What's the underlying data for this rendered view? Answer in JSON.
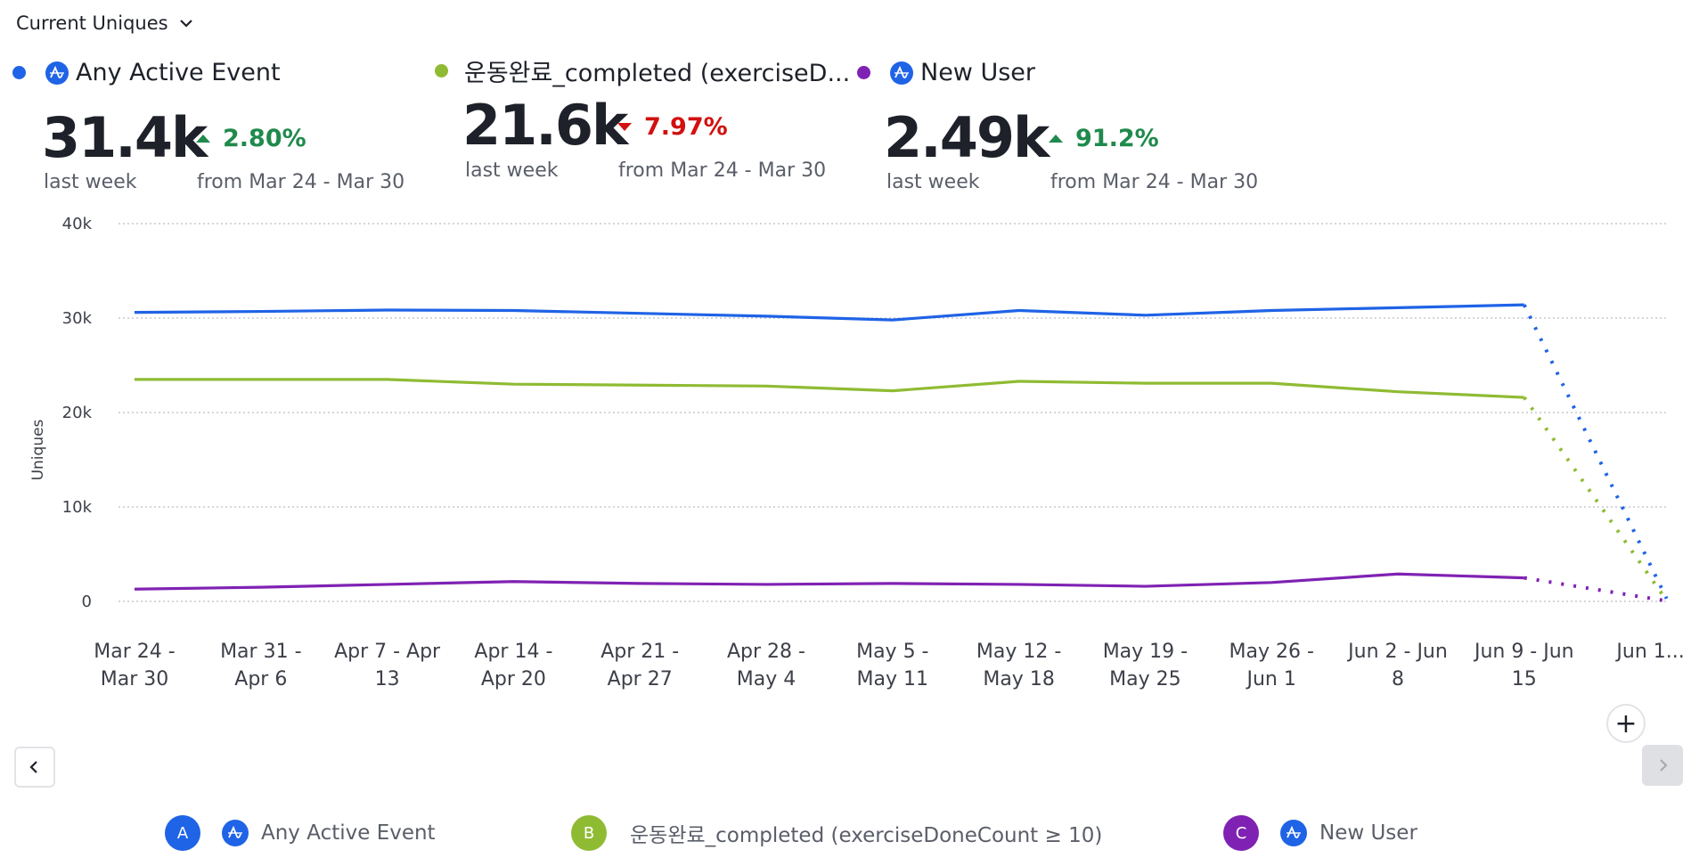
{
  "metric_selector": {
    "label": "Current Uniques",
    "icon": "chevron-down-icon"
  },
  "series": [
    {
      "id": "A",
      "name": "Any Active Event",
      "color": "#1f63e6",
      "has_event_icon": true,
      "value": "31.4k",
      "value_caption": "last week",
      "delta": "2.80%",
      "direction": "up",
      "delta_caption": "from Mar 24 - Mar 30",
      "legend_label": "Any Active Event"
    },
    {
      "id": "B",
      "name": "운동완료_completed (exerciseD...",
      "color": "#8fbb33",
      "has_event_icon": false,
      "value": "21.6k",
      "value_caption": "last week",
      "delta": "7.97%",
      "direction": "down",
      "delta_caption": "from Mar 24 - Mar 30",
      "legend_label": "운동완료_completed (exerciseDoneCount ≥ 10)"
    },
    {
      "id": "C",
      "name": "New User",
      "color": "#7f22b3",
      "has_event_icon": true,
      "value": "2.49k",
      "value_caption": "last week",
      "delta": "91.2%",
      "direction": "up",
      "delta_caption": "from Mar 24 - Mar 30",
      "legend_label": "New User"
    }
  ],
  "controls": {
    "plus": "+",
    "prev_icon": "chevron-left-icon",
    "next_icon": "chevron-right-icon"
  },
  "colors": {
    "up": "#1f8a4c",
    "down": "#d30f0f",
    "grid": "#c5c9ce"
  },
  "chart_data": {
    "type": "line",
    "title": "",
    "xlabel": "",
    "ylabel": "Uniques",
    "ylim": [
      0,
      40000
    ],
    "yticks": [
      0,
      10000,
      20000,
      30000,
      40000
    ],
    "ytick_labels": [
      "0",
      "10k",
      "20k",
      "30k",
      "40k"
    ],
    "grid": true,
    "legend": "bottom",
    "categories": [
      [
        "Mar 24 -",
        "Mar 30"
      ],
      [
        "Mar 31 -",
        "Apr 6"
      ],
      [
        "Apr 7 - Apr",
        "13"
      ],
      [
        "Apr 14 -",
        "Apr 20"
      ],
      [
        "Apr 21 -",
        "Apr 27"
      ],
      [
        "Apr 28 -",
        "May 4"
      ],
      [
        "May 5 -",
        "May 11"
      ],
      [
        "May 12 -",
        "May 18"
      ],
      [
        "May 19 -",
        "May 25"
      ],
      [
        "May 26 -",
        "Jun 1"
      ],
      [
        "Jun 2 - Jun",
        "8"
      ],
      [
        "Jun 9 - Jun",
        "15"
      ],
      [
        "Jun 1..."
      ]
    ],
    "incomplete_last_point": true,
    "series": [
      {
        "name": "Any Active Event",
        "color": "#1f63e6",
        "values": [
          30600,
          30700,
          30850,
          30800,
          30500,
          30200,
          29800,
          30800,
          30300,
          30800,
          31100,
          31400,
          300
        ]
      },
      {
        "name": "운동완료_completed (exerciseDoneCount ≥ 10)",
        "color": "#8fbb33",
        "values": [
          23500,
          23500,
          23500,
          23000,
          22900,
          22800,
          22300,
          23300,
          23100,
          23100,
          22200,
          21600,
          100
        ]
      },
      {
        "name": "New User",
        "color": "#7f22b3",
        "values": [
          1300,
          1500,
          1800,
          2100,
          1900,
          1800,
          1900,
          1800,
          1600,
          2000,
          2900,
          2490,
          50
        ]
      }
    ]
  }
}
